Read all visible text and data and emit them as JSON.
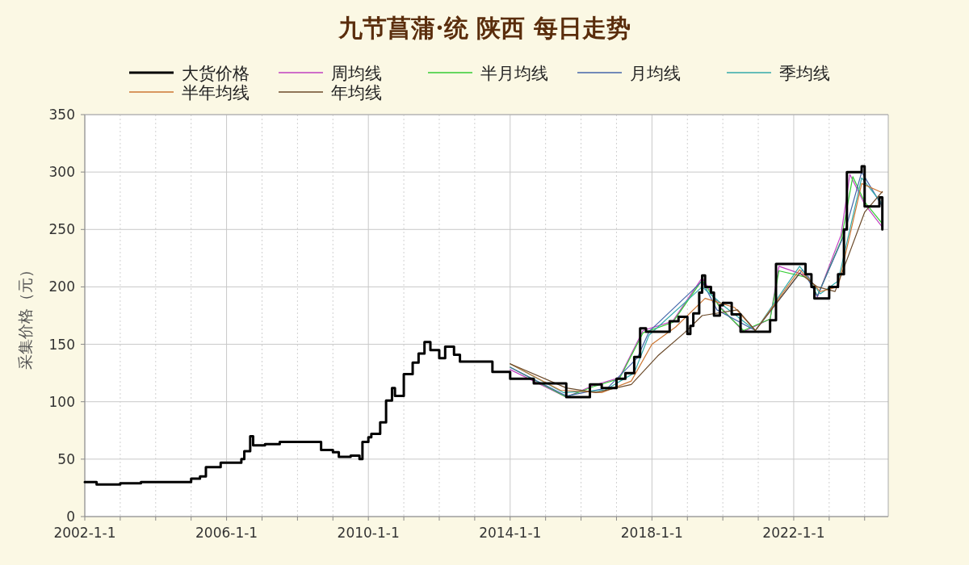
{
  "chart_data": {
    "type": "line",
    "title": "九节菖蒲·统 陕西 每日走势",
    "ylabel": "采集价格（元）",
    "xlim": [
      "2002-01-01",
      "2024-09-01"
    ],
    "ylim": [
      0,
      350
    ],
    "yticks": [
      0,
      50,
      100,
      150,
      200,
      250,
      300,
      350
    ],
    "xticks": [
      {
        "value": "2002-01-01",
        "label": "2002-1-1"
      },
      {
        "value": "2003-01-01",
        "label": null
      },
      {
        "value": "2004-01-01",
        "label": null
      },
      {
        "value": "2005-01-01",
        "label": null
      },
      {
        "value": "2006-01-01",
        "label": "2006-1-1"
      },
      {
        "value": "2007-01-01",
        "label": null
      },
      {
        "value": "2008-01-01",
        "label": null
      },
      {
        "value": "2009-01-01",
        "label": null
      },
      {
        "value": "2010-01-01",
        "label": "2010-1-1"
      },
      {
        "value": "2011-01-01",
        "label": null
      },
      {
        "value": "2012-01-01",
        "label": null
      },
      {
        "value": "2013-01-01",
        "label": null
      },
      {
        "value": "2014-01-01",
        "label": "2014-1-1"
      },
      {
        "value": "2015-01-01",
        "label": null
      },
      {
        "value": "2016-01-01",
        "label": null
      },
      {
        "value": "2017-01-01",
        "label": null
      },
      {
        "value": "2018-01-01",
        "label": "2018-1-1"
      },
      {
        "value": "2019-01-01",
        "label": null
      },
      {
        "value": "2020-01-01",
        "label": null
      },
      {
        "value": "2021-01-01",
        "label": null
      },
      {
        "value": "2022-01-01",
        "label": "2022-1-1"
      },
      {
        "value": "2023-01-01",
        "label": null
      },
      {
        "value": "2024-01-01",
        "label": null
      }
    ],
    "grid": true,
    "legend": "top",
    "series": [
      {
        "name": "大货价格",
        "type": "step",
        "color": "#000000",
        "x": [
          "2002-01",
          "2002-05",
          "2003-01",
          "2003-08",
          "2005-01",
          "2005-04",
          "2005-06",
          "2005-11",
          "2006-06",
          "2006-07",
          "2006-09",
          "2006-10",
          "2007-02",
          "2007-07",
          "2008-09",
          "2009-01",
          "2009-03",
          "2009-07",
          "2009-10",
          "2009-11",
          "2010-01",
          "2010-02",
          "2010-05",
          "2010-07",
          "2010-09",
          "2010-10",
          "2011-01",
          "2011-04",
          "2011-06",
          "2011-08",
          "2011-10",
          "2012-01",
          "2012-03",
          "2012-06",
          "2012-08",
          "2013-07",
          "2014-01",
          "2014-09",
          "2015-08",
          "2016-04",
          "2016-08",
          "2017-01",
          "2017-04",
          "2017-07",
          "2017-09",
          "2017-11",
          "2018-07",
          "2018-10",
          "2019-01",
          "2019-02",
          "2019-03",
          "2019-05",
          "2019-06",
          "2019-07",
          "2019-09",
          "2019-10",
          "2019-12",
          "2020-01",
          "2020-04",
          "2020-07",
          "2021-05",
          "2021-07",
          "2022-05",
          "2022-07",
          "2022-08",
          "2023-01",
          "2023-04",
          "2023-06",
          "2023-07",
          "2023-12",
          "2024-01",
          "2024-06",
          "2024-07"
        ],
        "values": [
          30,
          28,
          29,
          30,
          33,
          35,
          43,
          47,
          50,
          57,
          70,
          62,
          63,
          65,
          58,
          56,
          52,
          53,
          50,
          65,
          69,
          72,
          82,
          101,
          112,
          105,
          124,
          134,
          142,
          152,
          145,
          138,
          148,
          141,
          135,
          126,
          120,
          116,
          104,
          115,
          112,
          120,
          125,
          139,
          164,
          161,
          170,
          174,
          159,
          166,
          177,
          195,
          210,
          200,
          195,
          175,
          184,
          186,
          176,
          161,
          171,
          220,
          211,
          200,
          190,
          200,
          211,
          250,
          300,
          305,
          270,
          278,
          250
        ]
      },
      {
        "name": "周均线",
        "color": "#c040c0",
        "x": [
          "2014-01",
          "2015-08",
          "2016-05",
          "2017-02",
          "2017-10",
          "2018-08",
          "2019-06",
          "2019-12",
          "2020-08",
          "2021-05",
          "2021-08",
          "2022-06",
          "2022-09",
          "2023-05",
          "2023-08",
          "2024-01",
          "2024-07"
        ],
        "values": [
          128,
          104,
          114,
          121,
          162,
          170,
          208,
          183,
          161,
          172,
          218,
          209,
          191,
          245,
          298,
          272,
          252
        ]
      },
      {
        "name": "半月均线",
        "color": "#33cc33",
        "x": [
          "2014-01",
          "2015-08",
          "2016-05",
          "2017-02",
          "2017-10",
          "2018-08",
          "2019-06",
          "2019-12",
          "2020-08",
          "2021-05",
          "2021-08",
          "2022-06",
          "2022-09",
          "2023-05",
          "2023-09",
          "2024-01",
          "2024-07"
        ],
        "values": [
          130,
          104,
          113,
          120,
          160,
          169,
          206,
          182,
          162,
          172,
          214,
          208,
          192,
          240,
          296,
          274,
          255
        ]
      },
      {
        "name": "月均线",
        "color": "#4466aa",
        "x": [
          "2014-01",
          "2015-08",
          "2016-10",
          "2017-08",
          "2017-12",
          "2019-06",
          "2019-11",
          "2020-12",
          "2022-04",
          "2022-09",
          "2023-06",
          "2023-12",
          "2024-07"
        ],
        "values": [
          130,
          105,
          112,
          138,
          161,
          205,
          180,
          162,
          215,
          192,
          245,
          300,
          270
        ]
      },
      {
        "name": "季均线",
        "color": "#33aaaa",
        "x": [
          "2014-01",
          "2015-07",
          "2016-09",
          "2017-07",
          "2017-12",
          "2019-06",
          "2020-02",
          "2020-12",
          "2022-03",
          "2022-10",
          "2023-04",
          "2023-12",
          "2024-07"
        ],
        "values": [
          133,
          108,
          110,
          125,
          158,
          200,
          182,
          162,
          218,
          194,
          205,
          295,
          272
        ]
      },
      {
        "name": "半年均线",
        "color": "#cc7733",
        "x": [
          "2014-01",
          "2015-06",
          "2016-08",
          "2017-06",
          "2018-01",
          "2018-09",
          "2019-07",
          "2020-05",
          "2020-12",
          "2022-03",
          "2022-10",
          "2023-04",
          "2023-12",
          "2024-07"
        ],
        "values": [
          133,
          110,
          108,
          118,
          150,
          165,
          190,
          182,
          162,
          215,
          196,
          200,
          290,
          282
        ]
      },
      {
        "name": "年均线",
        "color": "#6b4a2a",
        "x": [
          "2014-01",
          "2015-08",
          "2016-06",
          "2017-06",
          "2018-03",
          "2018-12",
          "2019-06",
          "2020-06",
          "2020-12",
          "2022-03",
          "2022-09",
          "2023-03",
          "2024-01",
          "2024-07"
        ],
        "values": [
          133,
          112,
          108,
          115,
          140,
          160,
          175,
          180,
          162,
          212,
          200,
          196,
          265,
          283
        ]
      }
    ]
  }
}
